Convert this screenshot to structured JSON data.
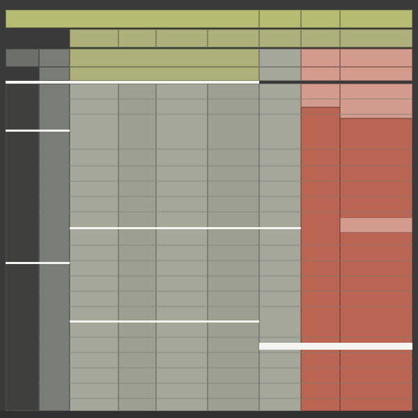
{
  "labels": {},
  "palette": {
    "header": "#b7bc73",
    "cell": "#a4a79a",
    "pink": "#d39b8d",
    "red": "#bb6654",
    "label": "#6d6f6b",
    "background": "#393a39"
  }
}
